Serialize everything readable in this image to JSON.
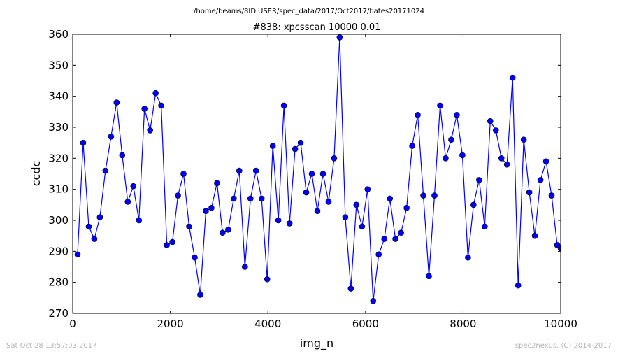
{
  "chart_data": {
    "type": "line",
    "suptitle": "/home/beams/8IDIUSER/spec_data/2017/Oct2017/bates20171024",
    "title": "#838: xpcsscan 10000 0.01",
    "xlabel": "img_n",
    "ylabel": "ccdc",
    "xlim": [
      0,
      10000
    ],
    "ylim": [
      270,
      360
    ],
    "xticks": [
      0,
      2000,
      4000,
      6000,
      8000,
      10000
    ],
    "yticks": [
      270,
      280,
      290,
      300,
      310,
      320,
      330,
      340,
      350,
      360
    ],
    "grid": false,
    "line_color": "#0000ff",
    "marker_color": "#0000ff",
    "marker": "circle",
    "series": [
      {
        "x": [
          100,
          214,
          329,
          443,
          557,
          671,
          786,
          900,
          1014,
          1129,
          1243,
          1357,
          1471,
          1586,
          1700,
          1814,
          1929,
          2043,
          2157,
          2271,
          2386,
          2500,
          2614,
          2729,
          2843,
          2957,
          3071,
          3186,
          3300,
          3414,
          3529,
          3643,
          3757,
          3871,
          3986,
          4100,
          4214,
          4329,
          4443,
          4557,
          4671,
          4786,
          4900,
          5014,
          5129,
          5243,
          5357,
          5471,
          5586,
          5700,
          5814,
          5929,
          6043,
          6157,
          6271,
          6386,
          6500,
          6614,
          6729,
          6843,
          6957,
          7071,
          7186,
          7300,
          7414,
          7529,
          7643,
          7757,
          7871,
          7986,
          8100,
          8214,
          8329,
          8443,
          8557,
          8671,
          8786,
          8900,
          9014,
          9129,
          9243,
          9357,
          9471,
          9586,
          9700,
          9814,
          9929,
          10000
        ],
        "y": [
          289,
          325,
          298,
          294,
          301,
          316,
          327,
          338,
          321,
          306,
          311,
          300,
          336,
          329,
          341,
          337,
          292,
          293,
          308,
          315,
          298,
          288,
          276,
          303,
          304,
          312,
          296,
          297,
          307,
          316,
          285,
          307,
          316,
          307,
          281,
          324,
          300,
          337,
          299,
          323,
          325,
          309,
          315,
          303,
          315,
          306,
          320,
          359,
          301,
          278,
          305,
          298,
          310,
          274,
          289,
          294,
          307,
          294,
          296,
          304,
          324,
          334,
          308,
          282,
          308,
          337,
          320,
          326,
          334,
          321,
          288,
          305,
          313,
          298,
          332,
          329,
          320,
          318,
          346,
          279,
          326,
          309,
          295,
          313,
          319,
          308,
          292,
          291
        ]
      }
    ]
  },
  "footer": {
    "timestamp": "Sat Oct 28 13:57:03 2017",
    "credit": "spec2nexus, (C) 2014-2017"
  }
}
